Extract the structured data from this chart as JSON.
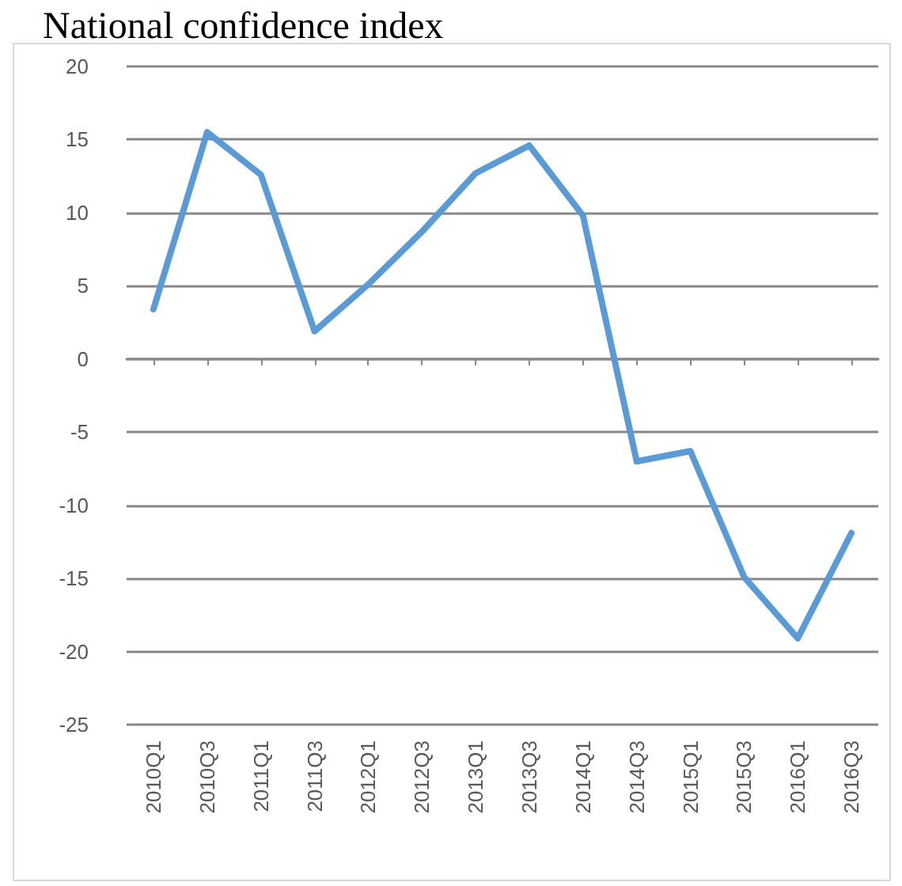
{
  "chart_data": {
    "type": "line",
    "title": "National confidence index",
    "categories": [
      "2010Q1",
      "2010Q3",
      "2011Q1",
      "2011Q3",
      "2012Q1",
      "2012Q3",
      "2013Q1",
      "2013Q3",
      "2014Q1",
      "2014Q3",
      "2015Q1",
      "2015Q3",
      "2016Q1",
      "2016Q3"
    ],
    "series": [
      {
        "color": "#5b9bd5",
        "values": [
          3.4,
          15.5,
          12.6,
          1.9,
          5.1,
          8.7,
          12.7,
          14.6,
          9.8,
          -7.0,
          -6.3,
          -14.9,
          -19.1,
          -11.9
        ]
      }
    ],
    "ylim": [
      -25,
      20
    ],
    "yticks": [
      -25,
      -20,
      -15,
      -10,
      -5,
      0,
      5,
      10,
      15,
      20
    ],
    "grid": "y",
    "marker": "none",
    "line_style": "solid"
  }
}
